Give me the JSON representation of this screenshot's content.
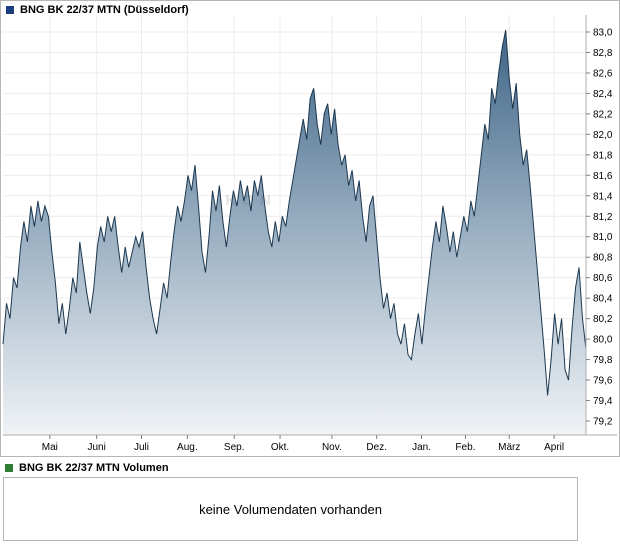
{
  "price_chart": {
    "title": "BNG BK 22/37 MTN (Düsseldorf)",
    "swatch_color": "#1b3f7e",
    "watermark": "KON"
  },
  "chart_data": {
    "type": "area",
    "title": "BNG BK 22/37 MTN (Düsseldorf)",
    "legend_position": "top-left",
    "grid": true,
    "line_color": "#1c3850",
    "area_gradient": [
      "#3f6486",
      "#92a9bd",
      "#f0f3f6"
    ],
    "ylim": [
      79.05,
      83.15
    ],
    "y_ticks": [
      "83,0",
      "82,8",
      "82,6",
      "82,4",
      "82,2",
      "82,0",
      "81,8",
      "81,6",
      "81,4",
      "81,2",
      "81,0",
      "80,8",
      "80,6",
      "80,4",
      "80,2",
      "80,0",
      "79,8",
      "79,6",
      "79,4",
      "79,2"
    ],
    "x_ticks": [
      {
        "label": "Mai",
        "pos": 0.0803
      },
      {
        "label": "Juni",
        "pos": 0.1607
      },
      {
        "label": "Juli",
        "pos": 0.2376
      },
      {
        "label": "Aug.",
        "pos": 0.3162
      },
      {
        "label": "Sep.",
        "pos": 0.3966
      },
      {
        "label": "Okt.",
        "pos": 0.4752
      },
      {
        "label": "Nov.",
        "pos": 0.5641
      },
      {
        "label": "Dez.",
        "pos": 0.641
      },
      {
        "label": "Jan.",
        "pos": 0.7179
      },
      {
        "label": "Feb.",
        "pos": 0.7932
      },
      {
        "label": "März",
        "pos": 0.8684
      },
      {
        "label": "April",
        "pos": 0.9453
      }
    ],
    "values": [
      79.95,
      80.35,
      80.2,
      80.6,
      80.5,
      80.9,
      81.15,
      80.95,
      81.3,
      81.1,
      81.35,
      81.15,
      81.3,
      81.2,
      80.85,
      80.55,
      80.15,
      80.35,
      80.05,
      80.3,
      80.6,
      80.45,
      80.95,
      80.7,
      80.45,
      80.25,
      80.5,
      80.9,
      81.1,
      80.95,
      81.2,
      81.05,
      81.2,
      80.9,
      80.65,
      80.9,
      80.7,
      80.85,
      81.0,
      80.9,
      81.05,
      80.7,
      80.4,
      80.2,
      80.05,
      80.3,
      80.55,
      80.4,
      80.75,
      81.05,
      81.3,
      81.15,
      81.35,
      81.6,
      81.45,
      81.7,
      81.3,
      80.85,
      80.65,
      81.0,
      81.45,
      81.25,
      81.5,
      81.15,
      80.9,
      81.2,
      81.45,
      81.3,
      81.55,
      81.35,
      81.5,
      81.25,
      81.55,
      81.4,
      81.6,
      81.3,
      81.05,
      80.9,
      81.15,
      80.95,
      81.2,
      81.1,
      81.35,
      81.55,
      81.75,
      81.95,
      82.15,
      81.95,
      82.35,
      82.45,
      82.1,
      81.9,
      82.2,
      82.3,
      82.0,
      82.25,
      81.9,
      81.7,
      81.8,
      81.5,
      81.65,
      81.35,
      81.55,
      81.2,
      80.95,
      81.3,
      81.4,
      81.0,
      80.6,
      80.3,
      80.45,
      80.2,
      80.35,
      80.05,
      79.95,
      80.15,
      79.85,
      79.8,
      80.05,
      80.25,
      79.95,
      80.3,
      80.6,
      80.9,
      81.15,
      80.95,
      81.3,
      81.1,
      80.85,
      81.05,
      80.8,
      81.0,
      81.2,
      81.05,
      81.35,
      81.2,
      81.5,
      81.8,
      82.1,
      81.95,
      82.45,
      82.3,
      82.6,
      82.85,
      83.02,
      82.55,
      82.25,
      82.5,
      82.0,
      81.7,
      81.85,
      81.5,
      81.1,
      80.7,
      80.3,
      79.9,
      79.45,
      79.8,
      80.25,
      79.95,
      80.2,
      79.7,
      79.6,
      80.1,
      80.5,
      80.7,
      80.2,
      79.9
    ]
  },
  "volume_chart": {
    "title": "BNG BK 22/37 MTN Volumen",
    "swatch_color": "#2e7d32",
    "message": "keine Volumendaten vorhanden"
  }
}
